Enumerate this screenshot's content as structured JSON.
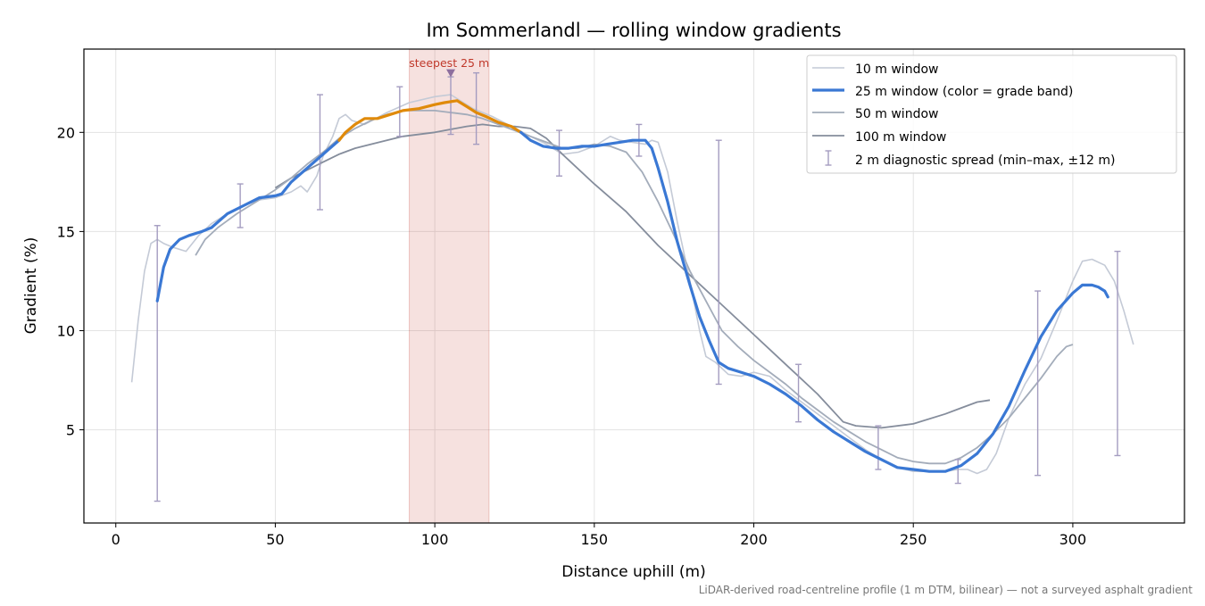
{
  "chart_data": {
    "type": "line",
    "title": "Im Sommerlandl — rolling window gradients",
    "xlabel": "Distance uphill (m)",
    "ylabel": "Gradient (%)",
    "xlim": [
      -10,
      335
    ],
    "ylim": [
      0.3,
      24.2
    ],
    "x_ticks": [
      0,
      50,
      100,
      150,
      200,
      250,
      300
    ],
    "y_ticks": [
      5,
      10,
      15,
      20
    ],
    "grid": true,
    "legend_position": "top-right",
    "footnote": "LiDAR-derived road-centreline profile (1 m DTM, bilinear) — not a surveyed asphalt gradient",
    "highlight": {
      "label": "steepest 25 m",
      "x_start": 92,
      "x_end": 117,
      "marker_x": 105,
      "marker_y": 23.0,
      "color": "#c0392b"
    },
    "colors": {
      "blue_band": "#3a78d4",
      "orange_band": "#e08a0a",
      "window_10": "#c4cad6",
      "window_50": "#a3acba",
      "window_100": "#858d9c",
      "error_bars": "#a49cc0"
    },
    "series": [
      {
        "name": "10 m window",
        "x": [
          5,
          7,
          9,
          11,
          13,
          15,
          18,
          22,
          26,
          30,
          35,
          40,
          45,
          50,
          55,
          58,
          60,
          63,
          65,
          68,
          70,
          72,
          74,
          78,
          85,
          92,
          100,
          105,
          108,
          112,
          118,
          124,
          130,
          135,
          140,
          145,
          150,
          155,
          158,
          162,
          166,
          168,
          170,
          173,
          176,
          180,
          183,
          185,
          188,
          192,
          196,
          200,
          205,
          210,
          215,
          220,
          225,
          230,
          235,
          240,
          245,
          250,
          255,
          260,
          264,
          267,
          270,
          273,
          276,
          280,
          285,
          290,
          295,
          300,
          303,
          306,
          310,
          313,
          316,
          319
        ],
        "y": [
          7.4,
          10.5,
          13.0,
          14.4,
          14.6,
          14.4,
          14.2,
          14.0,
          14.8,
          15.4,
          15.9,
          16.3,
          16.6,
          16.7,
          17.0,
          17.3,
          17.0,
          17.8,
          18.8,
          19.8,
          20.7,
          20.9,
          20.6,
          20.4,
          21.0,
          21.5,
          21.8,
          21.9,
          21.6,
          21.2,
          20.8,
          20.3,
          19.8,
          19.4,
          18.9,
          19.0,
          19.3,
          19.8,
          19.6,
          19.5,
          19.4,
          19.6,
          19.5,
          18.0,
          15.5,
          12.5,
          10.0,
          8.7,
          8.4,
          7.8,
          7.7,
          7.9,
          7.7,
          7.0,
          6.4,
          5.8,
          5.2,
          4.6,
          4.0,
          3.5,
          3.1,
          2.9,
          2.9,
          2.9,
          3.0,
          3.0,
          2.8,
          3.0,
          3.8,
          5.6,
          7.3,
          8.6,
          10.5,
          12.5,
          13.5,
          13.6,
          13.3,
          12.5,
          11.0,
          9.3
        ]
      },
      {
        "name": "25 m window (color = grade band)",
        "x": [
          13,
          15,
          17,
          20,
          23,
          27,
          30,
          35,
          40,
          45,
          50,
          52,
          55,
          60,
          65,
          70,
          72,
          75,
          78,
          82,
          86,
          90,
          95,
          100,
          103,
          107,
          110,
          113,
          116,
          120,
          124,
          127,
          130,
          134,
          138,
          142,
          146,
          150,
          154,
          158,
          162,
          166,
          168,
          170,
          173,
          176,
          180,
          183,
          186,
          189,
          192,
          196,
          200,
          205,
          210,
          215,
          220,
          225,
          230,
          235,
          240,
          245,
          250,
          255,
          260,
          265,
          270,
          275,
          280,
          285,
          290,
          295,
          300,
          303,
          306,
          308,
          310,
          311
        ],
        "y": [
          11.5,
          13.2,
          14.1,
          14.6,
          14.8,
          15.0,
          15.2,
          15.9,
          16.3,
          16.7,
          16.8,
          16.9,
          17.5,
          18.2,
          18.9,
          19.6,
          20.0,
          20.4,
          20.7,
          20.7,
          20.9,
          21.1,
          21.2,
          21.4,
          21.5,
          21.6,
          21.3,
          21.0,
          20.8,
          20.5,
          20.3,
          20.0,
          19.6,
          19.3,
          19.2,
          19.2,
          19.3,
          19.3,
          19.4,
          19.5,
          19.6,
          19.6,
          19.2,
          18.2,
          16.5,
          14.5,
          12.3,
          10.7,
          9.5,
          8.4,
          8.1,
          7.9,
          7.7,
          7.3,
          6.8,
          6.2,
          5.5,
          4.9,
          4.4,
          3.9,
          3.5,
          3.1,
          3.0,
          2.9,
          2.9,
          3.2,
          3.8,
          4.8,
          6.2,
          8.0,
          9.7,
          11.0,
          11.9,
          12.3,
          12.3,
          12.2,
          12.0,
          11.7
        ],
        "band_segments": [
          {
            "x_start": 13,
            "x_end": 70,
            "color": "#3a78d4"
          },
          {
            "x_start": 70,
            "x_end": 127,
            "color": "#e08a0a"
          },
          {
            "x_start": 127,
            "x_end": 311,
            "color": "#3a78d4"
          }
        ]
      },
      {
        "name": "50 m window",
        "x": [
          25,
          28,
          32,
          38,
          45,
          50,
          55,
          60,
          65,
          70,
          75,
          80,
          85,
          90,
          95,
          100,
          105,
          110,
          115,
          120,
          125,
          130,
          135,
          140,
          145,
          150,
          155,
          160,
          165,
          170,
          175,
          180,
          185,
          190,
          195,
          200,
          205,
          210,
          215,
          220,
          225,
          230,
          235,
          240,
          245,
          250,
          255,
          260,
          265,
          270,
          275,
          280,
          285,
          290,
          295,
          298,
          300
        ],
        "y": [
          13.8,
          14.6,
          15.2,
          15.9,
          16.6,
          17.1,
          17.7,
          18.4,
          19.0,
          19.7,
          20.2,
          20.6,
          20.9,
          21.1,
          21.1,
          21.1,
          21.0,
          20.9,
          20.7,
          20.4,
          20.1,
          19.8,
          19.5,
          19.2,
          19.2,
          19.4,
          19.3,
          19.0,
          18.0,
          16.5,
          14.8,
          13.0,
          11.5,
          10.0,
          9.2,
          8.5,
          7.9,
          7.3,
          6.6,
          6.0,
          5.4,
          4.9,
          4.4,
          4.0,
          3.6,
          3.4,
          3.3,
          3.3,
          3.6,
          4.1,
          4.8,
          5.6,
          6.6,
          7.6,
          8.7,
          9.2,
          9.3
        ]
      },
      {
        "name": "100 m window",
        "x": [
          50,
          55,
          60,
          65,
          70,
          75,
          80,
          90,
          100,
          110,
          115,
          120,
          125,
          130,
          135,
          140,
          150,
          160,
          170,
          180,
          190,
          200,
          210,
          220,
          228,
          232,
          240,
          250,
          260,
          265,
          270,
          274
        ],
        "y": [
          17.2,
          17.7,
          18.1,
          18.5,
          18.9,
          19.2,
          19.4,
          19.8,
          20.0,
          20.3,
          20.4,
          20.3,
          20.3,
          20.2,
          19.7,
          18.9,
          17.4,
          16.0,
          14.3,
          12.8,
          11.3,
          9.8,
          8.3,
          6.8,
          5.4,
          5.2,
          5.1,
          5.3,
          5.8,
          6.1,
          6.4,
          6.5
        ]
      }
    ],
    "error_bars": {
      "name": "2 m diagnostic spread (min–max, ±12 m)",
      "points": [
        {
          "x": 13,
          "min": 1.4,
          "max": 15.3
        },
        {
          "x": 39,
          "min": 15.2,
          "max": 17.4
        },
        {
          "x": 64,
          "min": 16.1,
          "max": 21.9
        },
        {
          "x": 89,
          "min": 19.8,
          "max": 22.3
        },
        {
          "x": 105,
          "min": 19.9,
          "max": 22.8
        },
        {
          "x": 113,
          "min": 19.4,
          "max": 23.0
        },
        {
          "x": 139,
          "min": 17.8,
          "max": 20.1
        },
        {
          "x": 164,
          "min": 18.8,
          "max": 20.4
        },
        {
          "x": 189,
          "min": 7.3,
          "max": 19.6
        },
        {
          "x": 214,
          "min": 5.4,
          "max": 8.3
        },
        {
          "x": 239,
          "min": 3.0,
          "max": 5.2
        },
        {
          "x": 264,
          "min": 2.3,
          "max": 3.5
        },
        {
          "x": 289,
          "min": 2.7,
          "max": 12.0
        },
        {
          "x": 314,
          "min": 3.7,
          "max": 14.0
        }
      ]
    }
  }
}
